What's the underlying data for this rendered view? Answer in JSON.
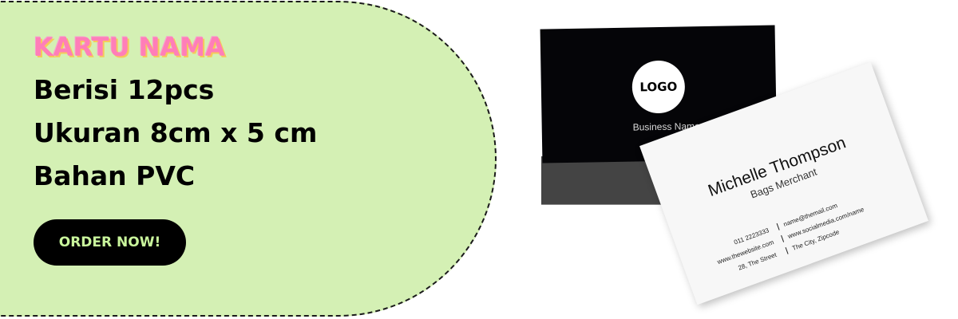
{
  "banner": {
    "title": "KARTU NAMA",
    "lines": [
      "Berisi 12pcs",
      "Ukuran 8cm x 5 cm",
      "Bahan PVC"
    ],
    "cta_label": "ORDER NOW!"
  },
  "product": {
    "black_card": {
      "logo_text": "LOGO",
      "business_name": "Business Name"
    },
    "white_card": {
      "name": "Michelle Thompson",
      "role": "Bags Merchant",
      "phone": "011 2223333",
      "email": "name@themail.com",
      "website": "www.thewebsite.com",
      "social": "www.socialmedia.com/name",
      "street": "28, The Street",
      "city": "The City, Zipcode"
    }
  },
  "colors": {
    "panel_bg": "#d4f0b4",
    "title_pink": "#ff7eb8",
    "button_bg": "#000000",
    "button_text": "#c9f59c"
  }
}
